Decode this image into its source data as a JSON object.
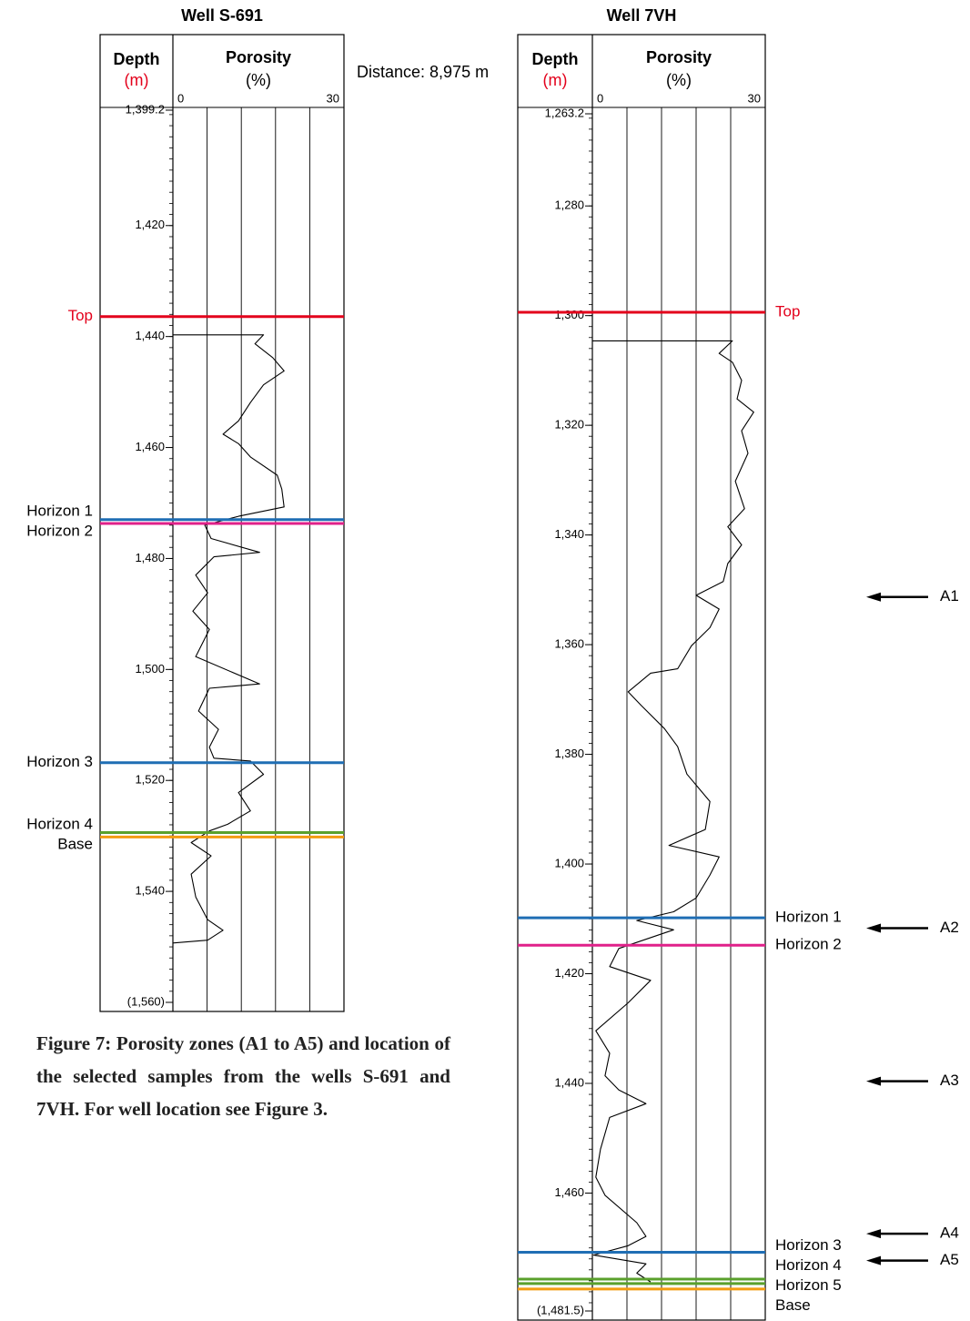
{
  "caption": "Figure 7: Porosity zones (A1 to A5) and location of the selected samples from the wells S-691 and 7VH. For well location see Figure 3.",
  "distance_label": "Distance: 8,975 m",
  "chart_data": [
    {
      "type": "line",
      "title": "Well S-691",
      "y_label": "Depth",
      "y_unit": "(m)",
      "y_unit_color": "#e3001b",
      "x_label": "Porosity",
      "x_unit": "(%)",
      "color": "#000000",
      "xlim": [
        0,
        30
      ],
      "xticks": [
        0,
        30
      ],
      "ylim": [
        1399.2,
        1560
      ],
      "yticks": [
        {
          "value": 1399.2,
          "label": "1,399.2"
        },
        {
          "value": 1420,
          "label": "1,420"
        },
        {
          "value": 1440,
          "label": "1,440"
        },
        {
          "value": 1460,
          "label": "1,460"
        },
        {
          "value": 1480,
          "label": "1,480"
        },
        {
          "value": 1500,
          "label": "1,500"
        },
        {
          "value": 1520,
          "label": "1,520"
        },
        {
          "value": 1540,
          "label": "1,540"
        },
        {
          "value": 1560,
          "label": "(1,560)"
        }
      ],
      "x": [
        1439.7,
        1439.7,
        1441.3,
        1443.8,
        1446.2,
        1448.7,
        1451.9,
        1455.2,
        1457.6,
        1459.3,
        1461.7,
        1465.0,
        1467.5,
        1470.7,
        1472.4,
        1474.0,
        1476.4,
        1478.9,
        1479.7,
        1483.0,
        1486.2,
        1489.5,
        1492.8,
        1497.7,
        1502.6,
        1503.4,
        1507.5,
        1510.8,
        1514.0,
        1516.0,
        1516.5,
        1518.9,
        1522.2,
        1525.5,
        1527.9,
        1529.1,
        1531.2,
        1533.6,
        1536.9,
        1541.0,
        1545.1,
        1547.0,
        1548.8,
        1549.3
      ],
      "values": [
        0,
        15.9,
        14.4,
        17.5,
        19.5,
        15.9,
        13.6,
        11.5,
        8.8,
        11.5,
        13.6,
        18.3,
        19.1,
        19.5,
        11.5,
        5.6,
        6.7,
        15.2,
        7.2,
        4.0,
        6.1,
        3.5,
        6.4,
        4.0,
        15.2,
        6.4,
        4.5,
        8.0,
        6.4,
        7.2,
        13.6,
        15.9,
        11.5,
        13.6,
        9.6,
        6.4,
        3.2,
        6.7,
        3.2,
        4.0,
        6.1,
        8.8,
        6.1,
        0
      ],
      "markers": [
        {
          "label": "Top",
          "depth": 1436.4,
          "color": "#e3001b",
          "label_color": "#e3001b"
        },
        {
          "label": "Horizon 1",
          "depth": 1473.0,
          "color": "#1f6eb4"
        },
        {
          "label": "Horizon 2",
          "depth": 1473.7,
          "color": "#e0218a"
        },
        {
          "label": "Horizon 3",
          "depth": 1516.8,
          "color": "#1f6eb4"
        },
        {
          "label": "Horizon 4",
          "depth": 1529.4,
          "color": "#5aa02c"
        },
        {
          "label": "Base",
          "depth": 1530.2,
          "color": "#f39c12"
        }
      ]
    },
    {
      "type": "line",
      "title": "Well 7VH",
      "y_label": "Depth",
      "y_unit": "(m)",
      "y_unit_color": "#e3001b",
      "x_label": "Porosity",
      "x_unit": "(%)",
      "color": "#000000",
      "xlim": [
        0,
        30
      ],
      "xticks": [
        0,
        30
      ],
      "ylim": [
        1263.2,
        1481.5
      ],
      "yticks": [
        {
          "value": 1263.2,
          "label": "1,263.2"
        },
        {
          "value": 1280,
          "label": "1,280"
        },
        {
          "value": 1300,
          "label": "1,300"
        },
        {
          "value": 1320,
          "label": "1,320"
        },
        {
          "value": 1340,
          "label": "1,340"
        },
        {
          "value": 1360,
          "label": "1,360"
        },
        {
          "value": 1380,
          "label": "1,380"
        },
        {
          "value": 1400,
          "label": "1,400"
        },
        {
          "value": 1420,
          "label": "1,420"
        },
        {
          "value": 1440,
          "label": "1,440"
        },
        {
          "value": 1460,
          "label": "1,460"
        },
        {
          "value": 1481.5,
          "label": "(1,481.5)"
        }
      ],
      "x": [
        1304.6,
        1304.6,
        1306.9,
        1308.5,
        1311.8,
        1315.2,
        1317.6,
        1321.0,
        1325.1,
        1330.2,
        1335.2,
        1338.5,
        1341.8,
        1345.2,
        1348.5,
        1351.0,
        1353.5,
        1356.9,
        1360.2,
        1364.4,
        1365.2,
        1368.6,
        1371.1,
        1375.3,
        1378.6,
        1383.6,
        1388.6,
        1393.7,
        1396.6,
        1398.7,
        1402.0,
        1406.2,
        1408.7,
        1410.3,
        1412.0,
        1415.4,
        1418.7,
        1421.2,
        1425.3,
        1430.4,
        1434.5,
        1438.6,
        1441.2,
        1443.7,
        1446.2,
        1452.0,
        1457.1,
        1460.4,
        1465.4,
        1467.9,
        1469.6,
        1471.3,
        1472.9,
        1474.6,
        1476.2
      ],
      "values": [
        0,
        24.3,
        22.0,
        24.3,
        25.9,
        25.1,
        28.0,
        25.9,
        27.0,
        24.8,
        26.4,
        23.5,
        25.9,
        23.5,
        22.7,
        18.0,
        22.0,
        20.4,
        17.2,
        14.8,
        10.1,
        6.2,
        8.5,
        12.5,
        14.8,
        16.4,
        20.4,
        19.6,
        13.3,
        22.0,
        20.4,
        18.0,
        14.1,
        7.7,
        14.1,
        4.6,
        3.0,
        10.1,
        6.2,
        0.6,
        3.0,
        2.2,
        4.6,
        9.3,
        3.0,
        1.4,
        0.6,
        2.2,
        7.7,
        9.3,
        6.2,
        0.2,
        9.3,
        7.7,
        10.1
      ],
      "markers": [
        {
          "label": "Top",
          "depth": 1299.4,
          "color": "#e3001b",
          "label_color": "#e3001b"
        },
        {
          "label": "Horizon 1",
          "depth": 1409.8,
          "color": "#1f6eb4"
        },
        {
          "label": "Horizon 2",
          "depth": 1414.8,
          "color": "#e0218a"
        },
        {
          "label": "Horizon 3",
          "depth": 1470.8,
          "color": "#1f6eb4"
        },
        {
          "label": "Horizon 4",
          "depth": 1475.7,
          "color": "#5aa02c"
        },
        {
          "label": "Horizon 5",
          "depth": 1476.5,
          "color": "#5aa02c"
        },
        {
          "label": "Base",
          "depth": 1477.5,
          "color": "#f39c12"
        }
      ],
      "zones": [
        {
          "label": "A1",
          "depth": 1351.3
        },
        {
          "label": "A2",
          "depth": 1411.7
        },
        {
          "label": "A3",
          "depth": 1439.6
        },
        {
          "label": "A4",
          "depth": 1467.4
        },
        {
          "label": "A5",
          "depth": 1472.3
        }
      ]
    }
  ]
}
